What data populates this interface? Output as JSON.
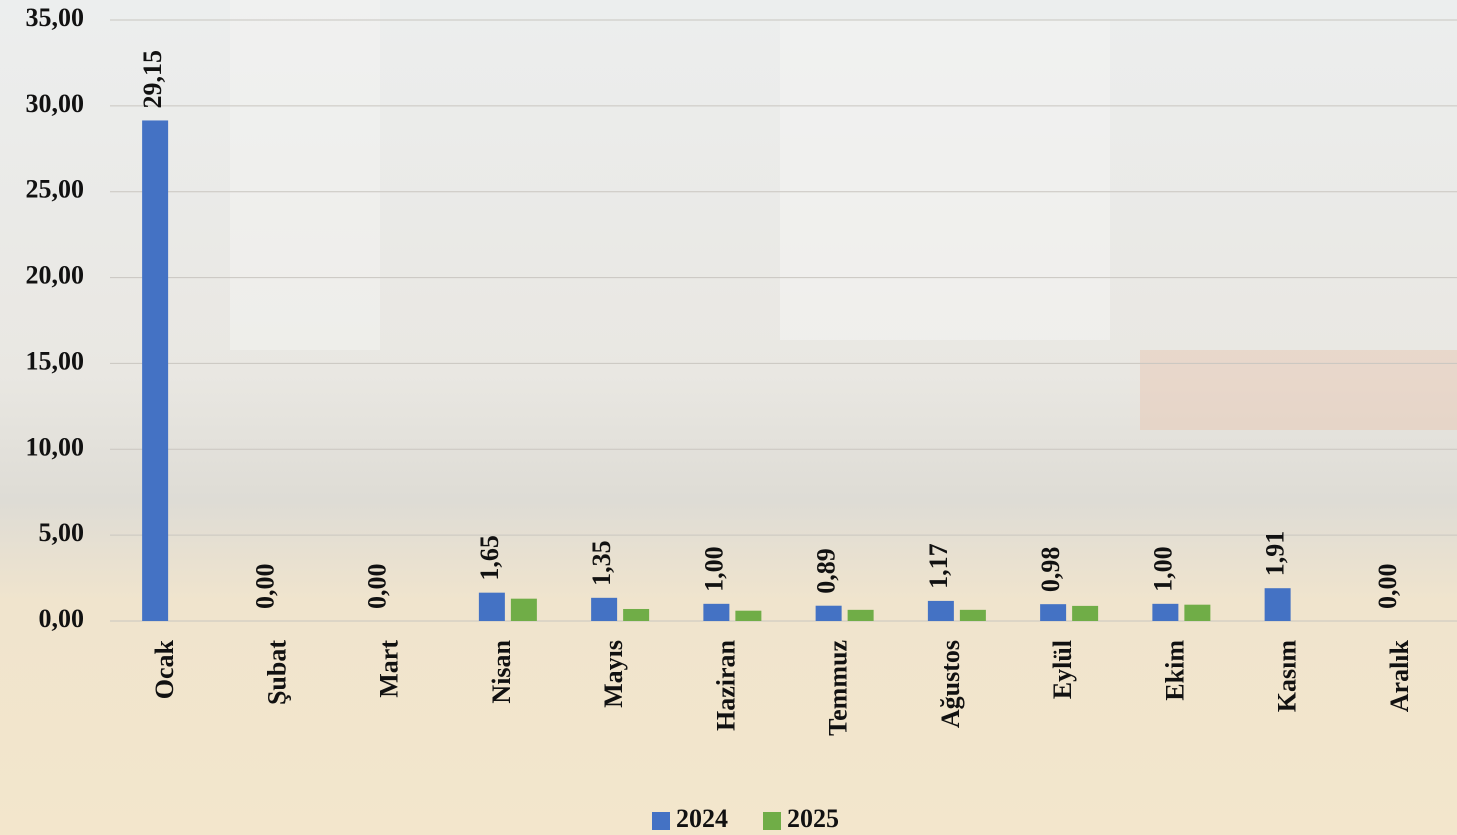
{
  "chart_data": {
    "type": "bar",
    "categories": [
      "Ocak",
      "Şubat",
      "Mart",
      "Nisan",
      "Mayıs",
      "Haziran",
      "Temmuz",
      "Ağustos",
      "Eylül",
      "Ekim",
      "Kasım",
      "Aralık"
    ],
    "series": [
      {
        "name": "2024",
        "color": "#4472c4",
        "values": [
          29.15,
          0,
          0,
          1.65,
          1.35,
          1.0,
          0.89,
          1.17,
          0.98,
          1.0,
          1.91,
          0
        ],
        "value_labels": [
          "29,15",
          "0,00",
          "0,00",
          "1,65",
          "1,35",
          "1,00",
          "0,89",
          "1,17",
          "0,98",
          "1,00",
          "1,91",
          "0,00"
        ]
      },
      {
        "name": "2025",
        "color": "#70ad47",
        "values": [
          null,
          null,
          null,
          1.3,
          0.7,
          0.6,
          0.65,
          0.65,
          0.88,
          0.95,
          null,
          null
        ]
      }
    ],
    "ylim": [
      0,
      35
    ],
    "yticks": [
      {
        "value": 0,
        "label": "0,00"
      },
      {
        "value": 5,
        "label": "5,00"
      },
      {
        "value": 10,
        "label": "10,00"
      },
      {
        "value": 15,
        "label": "15,00"
      },
      {
        "value": 20,
        "label": "20,00"
      },
      {
        "value": 25,
        "label": "25,00"
      },
      {
        "value": 30,
        "label": "30,00"
      },
      {
        "value": 35,
        "label": "35,00"
      }
    ],
    "grid": true,
    "legend": "bottom"
  }
}
